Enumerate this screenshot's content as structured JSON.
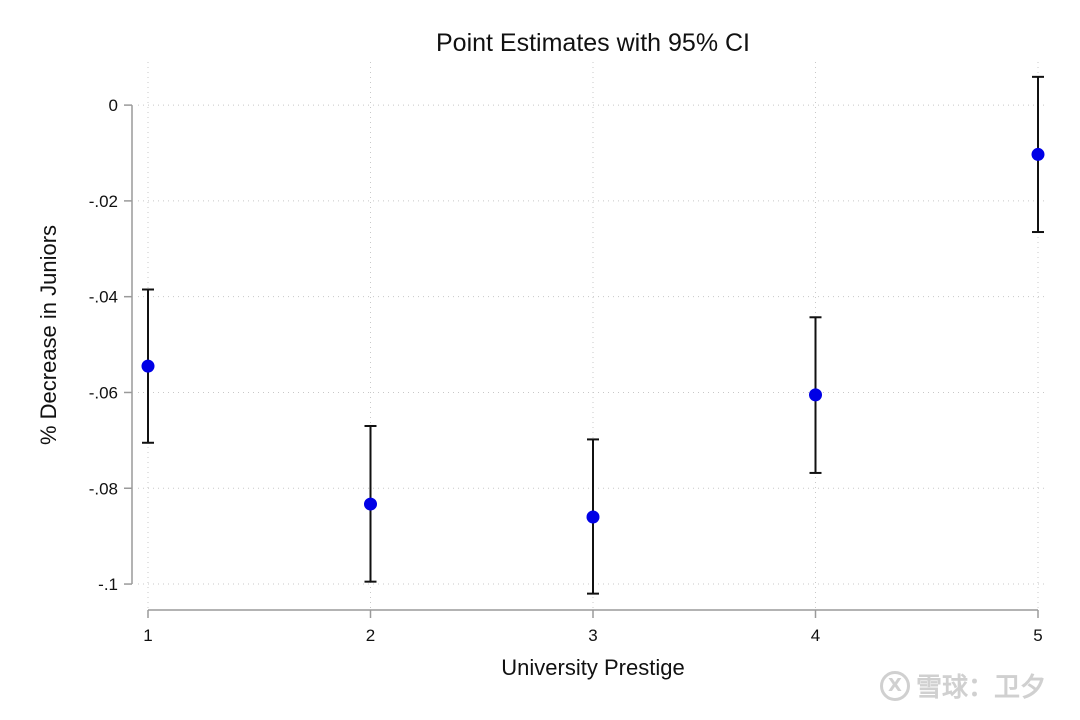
{
  "chart_data": {
    "type": "scatter",
    "title": "Point Estimates with 95% CI",
    "xlabel": "University Prestige",
    "ylabel": "% Decrease in Juniors",
    "x_ticks": [
      1,
      2,
      3,
      4,
      5
    ],
    "x_tick_labels": [
      "1",
      "2",
      "3",
      "4",
      "5"
    ],
    "y_ticks": [
      0,
      -0.02,
      -0.04,
      -0.06,
      -0.08,
      -0.1
    ],
    "y_tick_labels": [
      "0",
      "-.02",
      "-.04",
      "-.06",
      "-.08",
      "-.1"
    ],
    "xlim": [
      1,
      5
    ],
    "ylim": [
      -0.105,
      0.009
    ],
    "grid": true,
    "marker_color": "#0000e6",
    "ci_color": "#111111",
    "series": [
      {
        "points": [
          {
            "x": 1,
            "y": -0.0545,
            "ci_low": -0.0705,
            "ci_high": -0.0385
          },
          {
            "x": 2,
            "y": -0.0833,
            "ci_low": -0.0995,
            "ci_high": -0.067
          },
          {
            "x": 3,
            "y": -0.086,
            "ci_low": -0.102,
            "ci_high": -0.0698
          },
          {
            "x": 4,
            "y": -0.0605,
            "ci_low": -0.0768,
            "ci_high": -0.0443
          },
          {
            "x": 5,
            "y": -0.0103,
            "ci_low": -0.0265,
            "ci_high": 0.0059
          }
        ]
      }
    ]
  },
  "watermark": {
    "logo_glyph": "X",
    "text": "雪球：卫夕"
  }
}
